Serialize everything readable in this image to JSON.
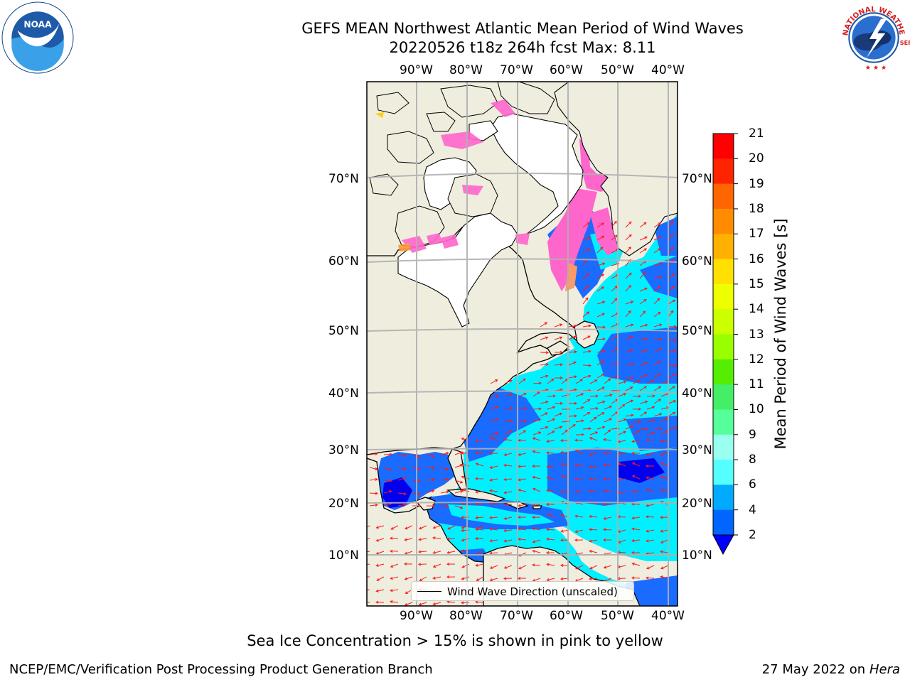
{
  "header": {
    "title_line1": "GEFS MEAN Northwest Atlantic Mean Period of Wind Waves",
    "title_line2": "20220526 t18z 264h fcst   Max: 8.11"
  },
  "logos": {
    "left": {
      "icon": "noaa-logo",
      "text": "NOAA"
    },
    "right": {
      "icon": "nws-logo",
      "text": "NATIONAL WEATHER SERVICE"
    }
  },
  "map": {
    "lon_labels": [
      "90°W",
      "80°W",
      "70°W",
      "60°W",
      "50°W",
      "40°W"
    ],
    "lat_labels": [
      "70°N",
      "60°N",
      "50°N",
      "40°N",
      "30°N",
      "20°N",
      "10°N"
    ],
    "legend_label": "Wind Wave Direction (unscaled)"
  },
  "colorbar": {
    "label": "Mean Period of Wind Waves [s]",
    "ticks": [
      "21",
      "20",
      "19",
      "18",
      "17",
      "16",
      "15",
      "14",
      "13",
      "12",
      "11",
      "10",
      "9",
      "8",
      "6",
      "4",
      "2"
    ],
    "colors": [
      "#ff0000",
      "#ff2400",
      "#ff4500",
      "#ff6600",
      "#ff8c00",
      "#ffb000",
      "#ffe000",
      "#ffff00",
      "#eeff00",
      "#ccff00",
      "#99ff00",
      "#55ee00",
      "#00dd00",
      "#44ee66",
      "#55ff99",
      "#99ffee",
      "#55ffff",
      "#00ffff",
      "#00aaff",
      "#0066ff"
    ],
    "extend_color": "#0000ff"
  },
  "chart_data": {
    "type": "heatmap",
    "title": "GEFS MEAN Northwest Atlantic Mean Period of Wind Waves",
    "subtitle": "20220526 t18z 264h fcst   Max: 8.11",
    "variable": "Mean Period of Wind Waves [s]",
    "max_value": 8.11,
    "colorbar_ticks": [
      2,
      4,
      6,
      8,
      9,
      10,
      11,
      12,
      13,
      14,
      15,
      16,
      17,
      18,
      19,
      20,
      21
    ],
    "lon_range": [
      "90°W",
      "40°W"
    ],
    "lat_range": [
      "10°N",
      "70°N"
    ]
  },
  "notes": {
    "sea_ice": "Sea Ice Concentration > 15% is shown in pink to yellow"
  },
  "footer": {
    "left": "NCEP/EMC/Verification Post Processing Product Generation Branch",
    "right_date": "27 May 2022 on",
    "right_machine": "Hera"
  }
}
